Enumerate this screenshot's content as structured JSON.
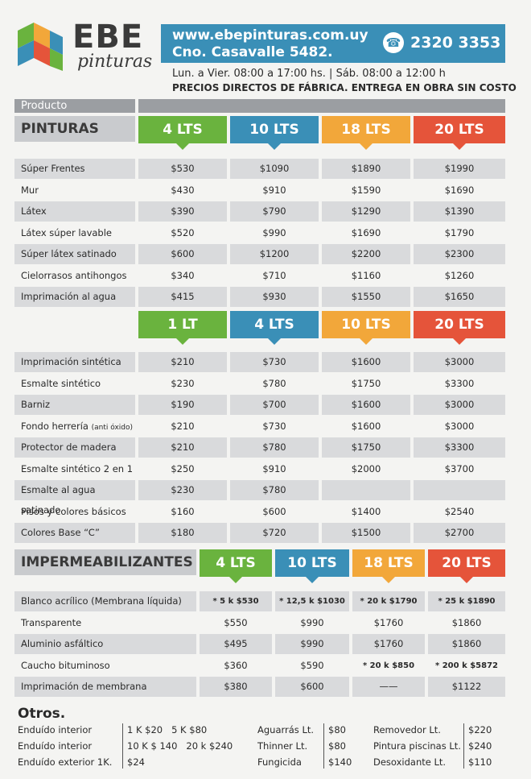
{
  "header": {
    "brand_name": "EBE",
    "brand_sub": "pinturas",
    "website": "www.ebepinturas.com.uy",
    "address": "Cno. Casavalle 5482.",
    "phone": "2320 3353",
    "hours": "Lun. a Vier. 08:00 a 17:00 hs. | Sáb. 08:00 a 12:00 h",
    "slogan": "PRECIOS DIRECTOS DE FÁBRICA. ENTREGA EN OBRA SIN COSTO"
  },
  "producto_label": "Producto",
  "pinturas": {
    "label": "PINTURAS",
    "sizes": [
      "4 LTS",
      "10 LTS",
      "18 LTS",
      "20 LTS"
    ],
    "rows": [
      {
        "name": "Súper Frentes",
        "prices": [
          "$530",
          "$1090",
          "$1890",
          "$1990"
        ]
      },
      {
        "name": "Mur",
        "prices": [
          "$430",
          "$910",
          "$1590",
          "$1690"
        ]
      },
      {
        "name": "Látex",
        "prices": [
          "$390",
          "$790",
          "$1290",
          "$1390"
        ]
      },
      {
        "name": "Látex súper lavable",
        "prices": [
          "$520",
          "$990",
          "$1690",
          "$1790"
        ]
      },
      {
        "name": "Súper látex satinado",
        "prices": [
          "$600",
          "$1200",
          "$2200",
          "$2300"
        ]
      },
      {
        "name": "Cielorrasos antihongos",
        "prices": [
          "$340",
          "$710",
          "$1160",
          "$1260"
        ]
      },
      {
        "name": "Imprimación al agua",
        "prices": [
          "$415",
          "$930",
          "$1550",
          "$1650"
        ]
      }
    ]
  },
  "sinteticos": {
    "sizes": [
      "1 LT",
      "4 LTS",
      "10 LTS",
      "20 LTS"
    ],
    "rows": [
      {
        "name": "Imprimación sintética",
        "note": "",
        "prices": [
          "$210",
          "$730",
          "$1600",
          "$3000"
        ]
      },
      {
        "name": "Esmalte sintético",
        "note": "",
        "prices": [
          "$230",
          "$780",
          "$1750",
          "$3300"
        ]
      },
      {
        "name": "Barniz",
        "note": "",
        "prices": [
          "$190",
          "$700",
          "$1600",
          "$3000"
        ]
      },
      {
        "name": "Fondo herrería",
        "note": "(anti óxido)",
        "prices": [
          "$210",
          "$730",
          "$1600",
          "$3000"
        ]
      },
      {
        "name": "Protector de madera",
        "note": "",
        "prices": [
          "$210",
          "$780",
          "$1750",
          "$3300"
        ]
      },
      {
        "name": "Esmalte sintético 2 en 1",
        "note": "",
        "prices": [
          "$250",
          "$910",
          "$2000",
          "$3700"
        ]
      },
      {
        "name": "Esmalte al agua satinado",
        "note": "",
        "prices": [
          "$230",
          "$780",
          "",
          ""
        ]
      },
      {
        "name": "Pisos y colores básicos",
        "note": "",
        "prices": [
          "$160",
          "$600",
          "$1400",
          "$2540"
        ]
      },
      {
        "name": "Colores Base “C”",
        "note": "",
        "prices": [
          "$180",
          "$720",
          "$1500",
          "$2700"
        ]
      }
    ]
  },
  "impermeabilizantes": {
    "label": "IMPERMEABILIZANTES",
    "sizes": [
      "4 LTS",
      "10 LTS",
      "18 LTS",
      "20 LTS"
    ],
    "rows": [
      {
        "name": "Blanco acrílico (Membrana líquida)",
        "prices": [
          "* 5 k $530",
          "* 12,5 k $1030",
          "* 20 k $1790",
          "* 25 k $1890"
        ]
      },
      {
        "name": "Transparente",
        "prices": [
          "$550",
          "$990",
          "$1760",
          "$1860"
        ]
      },
      {
        "name": "Aluminio asfáltico",
        "prices": [
          "$495",
          "$990",
          "$1760",
          "$1860"
        ]
      },
      {
        "name": "Caucho bituminoso",
        "prices": [
          "$360",
          "$590",
          "* 20 k $850",
          "* 200 k $5872"
        ]
      },
      {
        "name": "Imprimación de membrana",
        "prices": [
          "$380",
          "$600",
          "——",
          "$1122"
        ]
      }
    ]
  },
  "otros": {
    "title": "Otros.",
    "col1": [
      {
        "name": "Enduído interior",
        "value": "1 K $20   5 K $80"
      },
      {
        "name": "Enduído interior",
        "value": "10 K $ 140   20 k $240"
      },
      {
        "name": "Enduído exterior 1K.",
        "value": "$24"
      }
    ],
    "col2": [
      {
        "name": "Aguarrás Lt.",
        "value": "$80"
      },
      {
        "name": "Thinner Lt.",
        "value": "$80"
      },
      {
        "name": "Fungicida",
        "value": "$140"
      }
    ],
    "col3": [
      {
        "name": "Removedor Lt.",
        "value": "$220"
      },
      {
        "name": "Pintura piscinas Lt.",
        "value": "$240"
      },
      {
        "name": "Desoxidante Lt.",
        "value": "$110"
      }
    ]
  },
  "colors": {
    "green": "#6ab33e",
    "blue": "#3a8fb7",
    "orange": "#f2a73a",
    "red": "#e5543a",
    "gray": "#9b9ea2",
    "shade": "#d9dadc"
  }
}
